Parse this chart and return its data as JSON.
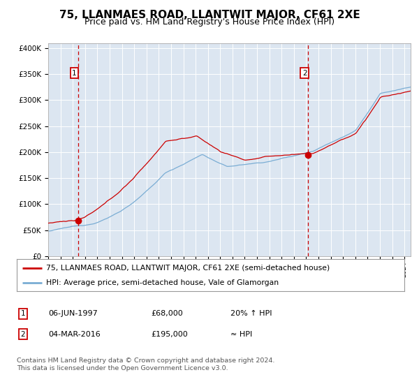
{
  "title": "75, LLANMAES ROAD, LLANTWIT MAJOR, CF61 2XE",
  "subtitle": "Price paid vs. HM Land Registry's House Price Index (HPI)",
  "legend_line1": "75, LLANMAES ROAD, LLANTWIT MAJOR, CF61 2XE (semi-detached house)",
  "legend_line2": "HPI: Average price, semi-detached house, Vale of Glamorgan",
  "annotation1_date": "06-JUN-1997",
  "annotation1_price": "£68,000",
  "annotation1_hpi": "20% ↑ HPI",
  "annotation2_date": "04-MAR-2016",
  "annotation2_price": "£195,000",
  "annotation2_hpi": "≈ HPI",
  "footnote": "Contains HM Land Registry data © Crown copyright and database right 2024.\nThis data is licensed under the Open Government Licence v3.0.",
  "bg_color": "#dce6f1",
  "sale1_x": 1997.43,
  "sale1_y": 68000,
  "sale2_x": 2016.17,
  "sale2_y": 195000,
  "ylim": [
    0,
    410000
  ],
  "xlim_start": 1995.0,
  "xlim_end": 2024.5,
  "red_line_color": "#cc0000",
  "blue_line_color": "#7aadd4",
  "marker_color": "#cc0000",
  "vline_color": "#cc0000",
  "title_fontsize": 11,
  "subtitle_fontsize": 9
}
